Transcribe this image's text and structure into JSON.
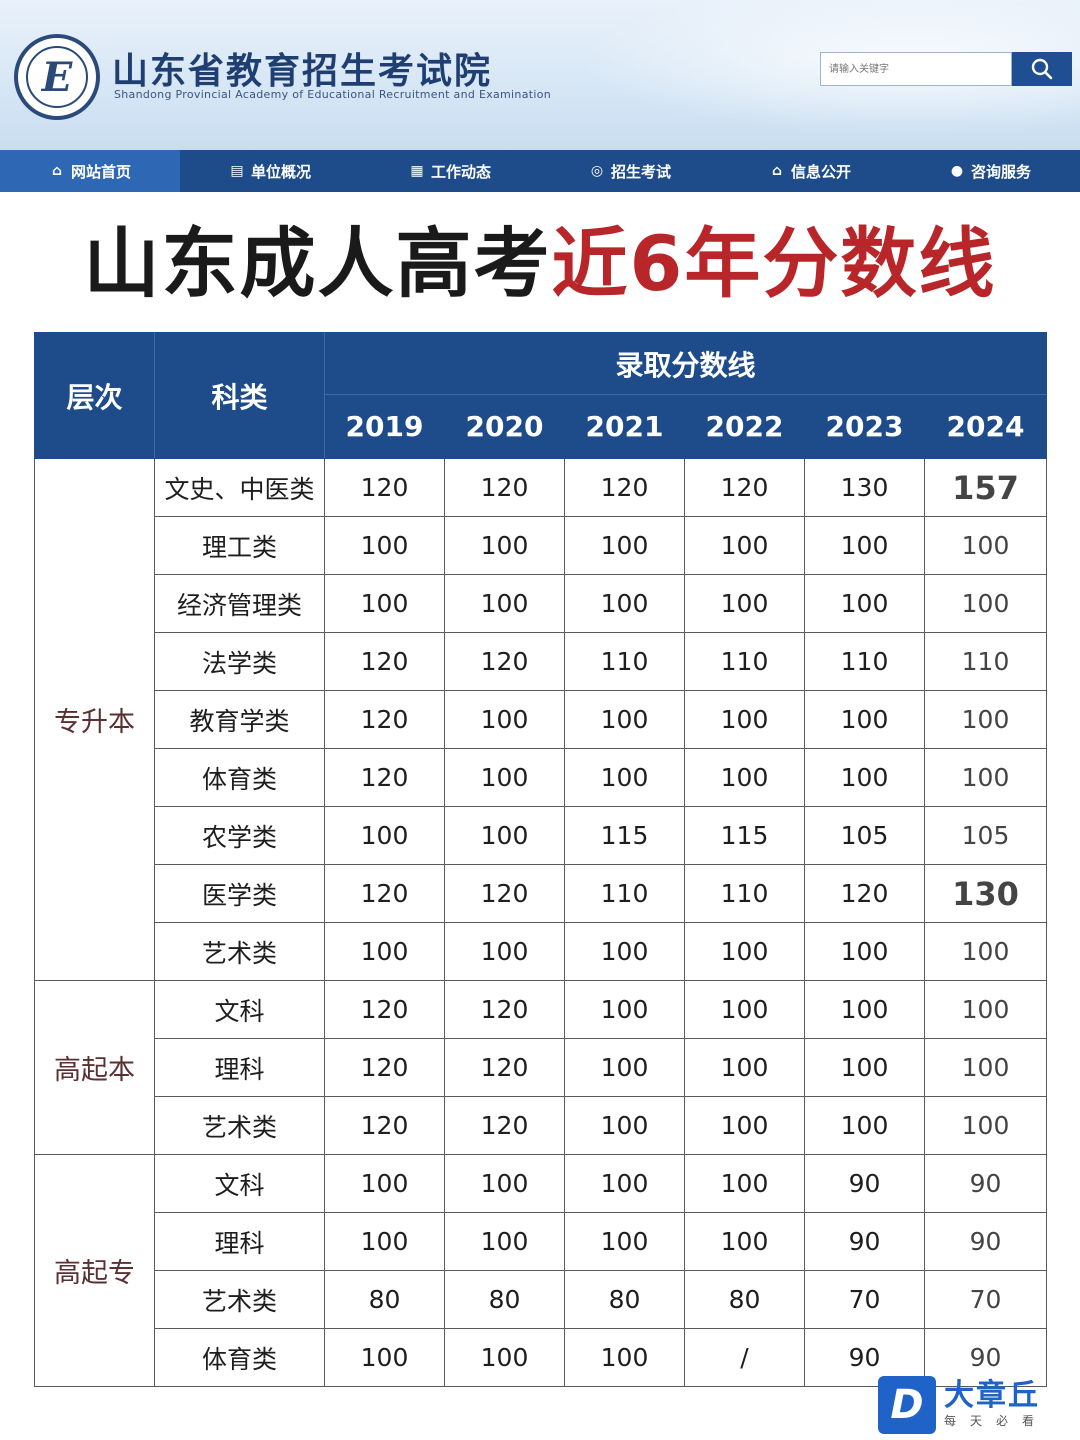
{
  "header": {
    "logo_letter": "E",
    "title": "山东省教育招生考试院",
    "subtitle": "Shandong Provincial Academy of Educational Recruitment and Examination",
    "search_placeholder": "请输入关键字"
  },
  "nav": {
    "items": [
      {
        "label": "网站首页",
        "icon": "home-icon"
      },
      {
        "label": "单位概况",
        "icon": "building-icon"
      },
      {
        "label": "工作动态",
        "icon": "news-icon"
      },
      {
        "label": "招生考试",
        "icon": "exam-icon"
      },
      {
        "label": "信息公开",
        "icon": "info-icon"
      },
      {
        "label": "咨询服务",
        "icon": "user-service-icon"
      }
    ]
  },
  "heading": {
    "part_black": "山东成人高考",
    "part_red": "近6年分数线"
  },
  "table": {
    "col_level": "层次",
    "col_subject": "科类",
    "col_group": "录取分数线",
    "years": [
      "2019",
      "2020",
      "2021",
      "2022",
      "2023",
      "2024"
    ],
    "groups": [
      {
        "level": "专升本",
        "rows": [
          {
            "subject": "文史、中医类",
            "scores": [
              "120",
              "120",
              "120",
              "120",
              "130",
              "157"
            ]
          },
          {
            "subject": "理工类",
            "scores": [
              "100",
              "100",
              "100",
              "100",
              "100",
              "100"
            ]
          },
          {
            "subject": "经济管理类",
            "scores": [
              "100",
              "100",
              "100",
              "100",
              "100",
              "100"
            ]
          },
          {
            "subject": "法学类",
            "scores": [
              "120",
              "120",
              "110",
              "110",
              "110",
              "110"
            ]
          },
          {
            "subject": "教育学类",
            "scores": [
              "120",
              "100",
              "100",
              "100",
              "100",
              "100"
            ]
          },
          {
            "subject": "体育类",
            "scores": [
              "120",
              "100",
              "100",
              "100",
              "100",
              "100"
            ]
          },
          {
            "subject": "农学类",
            "scores": [
              "100",
              "100",
              "115",
              "115",
              "105",
              "105"
            ]
          },
          {
            "subject": "医学类",
            "scores": [
              "120",
              "120",
              "110",
              "110",
              "120",
              "130"
            ]
          },
          {
            "subject": "艺术类",
            "scores": [
              "100",
              "100",
              "100",
              "100",
              "100",
              "100"
            ]
          }
        ]
      },
      {
        "level": "高起本",
        "rows": [
          {
            "subject": "文科",
            "scores": [
              "120",
              "120",
              "100",
              "100",
              "100",
              "100"
            ]
          },
          {
            "subject": "理科",
            "scores": [
              "120",
              "120",
              "100",
              "100",
              "100",
              "100"
            ]
          },
          {
            "subject": "艺术类",
            "scores": [
              "120",
              "120",
              "100",
              "100",
              "100",
              "100"
            ]
          }
        ]
      },
      {
        "level": "高起专",
        "rows": [
          {
            "subject": "文科",
            "scores": [
              "100",
              "100",
              "100",
              "100",
              "90",
              "90"
            ]
          },
          {
            "subject": "理科",
            "scores": [
              "100",
              "100",
              "100",
              "100",
              "90",
              "90"
            ]
          },
          {
            "subject": "艺术类",
            "scores": [
              "80",
              "80",
              "80",
              "80",
              "70",
              "70"
            ]
          },
          {
            "subject": "体育类",
            "scores": [
              "100",
              "100",
              "100",
              "/",
              "90",
              "90"
            ]
          }
        ]
      }
    ],
    "highlighted": [
      "157",
      "130"
    ]
  },
  "watermark": {
    "mark": "D",
    "name": "大章丘",
    "slogan": "每天必看"
  },
  "colors": {
    "nav_bg": "#1e4c8a",
    "nav_active": "#2e68b5",
    "table_header_bg": "#1e4c8a",
    "heading_red": "#b8262a",
    "brand_blue": "#1f63c9"
  }
}
